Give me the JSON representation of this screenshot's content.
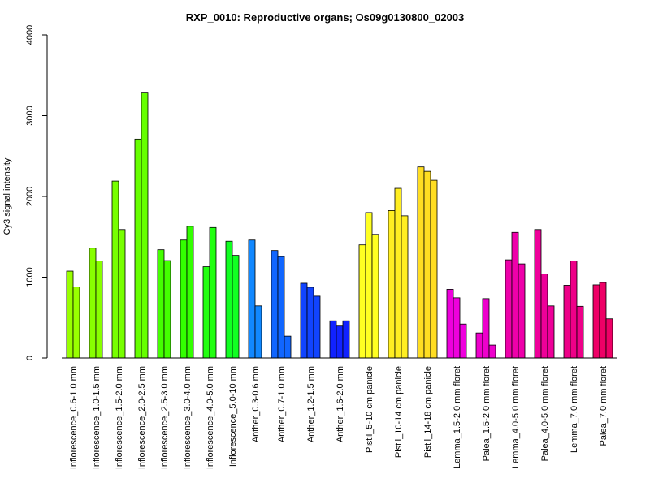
{
  "chart_data": {
    "type": "bar",
    "title": "RXP_0010: Reproductive organs; Os09g0130800_02003",
    "xlabel": "",
    "ylabel": "Cy3 signal intensity",
    "ylim": [
      0,
      4000
    ],
    "yticks": [
      0,
      1000,
      2000,
      3000,
      4000
    ],
    "grid": false,
    "legend": "none",
    "groups": [
      {
        "label": "Inflorescence_0.6-1.0 mm",
        "color": "#99ff00",
        "values": [
          1075,
          880
        ]
      },
      {
        "label": "Inflorescence_1.0-1.5 mm",
        "color": "#88ff00",
        "values": [
          1360,
          1200
        ]
      },
      {
        "label": "Inflorescence_1.5-2.0 mm",
        "color": "#77ff00",
        "values": [
          2190,
          1590
        ]
      },
      {
        "label": "Inflorescence_2.0-2.5 mm",
        "color": "#66ff00",
        "values": [
          2710,
          3290
        ]
      },
      {
        "label": "Inflorescence_2.5-3.0 mm",
        "color": "#44ff00",
        "values": [
          1340,
          1205
        ]
      },
      {
        "label": "Inflorescence_3.0-4.0 mm",
        "color": "#33ff00",
        "values": [
          1460,
          1630
        ]
      },
      {
        "label": "Inflorescence_4.0-5.0 mm",
        "color": "#22ff11",
        "values": [
          1130,
          1615
        ]
      },
      {
        "label": "Inflorescence_5.0-10 mm",
        "color": "#11ff22",
        "values": [
          1445,
          1270
        ]
      },
      {
        "label": "Anther_0.3-0.6 mm",
        "color": "#1188ff",
        "values": [
          1460,
          645
        ]
      },
      {
        "label": "Anther_0.7-1.0 mm",
        "color": "#1166ff",
        "values": [
          1330,
          1255,
          270
        ]
      },
      {
        "label": "Anther_1.2-1.5 mm",
        "color": "#1144ff",
        "values": [
          925,
          875,
          765
        ]
      },
      {
        "label": "Anther_1.6-2.0 mm",
        "color": "#1122ff",
        "values": [
          460,
          395,
          460
        ]
      },
      {
        "label": "Pistil_5-10 cm panicle",
        "color": "#ffff22",
        "values": [
          1400,
          1800,
          1530
        ]
      },
      {
        "label": "Pistil_10-14 cm panicle",
        "color": "#ffee22",
        "values": [
          1825,
          2100,
          1760
        ]
      },
      {
        "label": "Pistil_14-18 cm panicle",
        "color": "#ffdd22",
        "values": [
          2365,
          2310,
          2200
        ]
      },
      {
        "label": "Lemma_1.5-2.0 mm floret",
        "color": "#ee00dd",
        "values": [
          850,
          745,
          420
        ]
      },
      {
        "label": "Palea_1.5-2.0 mm floret",
        "color": "#ee00cc",
        "values": [
          310,
          735,
          160
        ]
      },
      {
        "label": "Lemma_4.0-5.0 mm floret",
        "color": "#ee00aa",
        "values": [
          1215,
          1555,
          1165
        ]
      },
      {
        "label": "Palea_4.0-5.0 mm floret",
        "color": "#ee0099",
        "values": [
          1590,
          1040,
          645
        ]
      },
      {
        "label": "Lemma_7.0 mm floret",
        "color": "#ee0088",
        "values": [
          900,
          1200,
          640
        ]
      },
      {
        "label": "Palea_7.0 mm floret",
        "color": "#ee0066",
        "values": [
          905,
          935,
          485
        ]
      }
    ]
  }
}
